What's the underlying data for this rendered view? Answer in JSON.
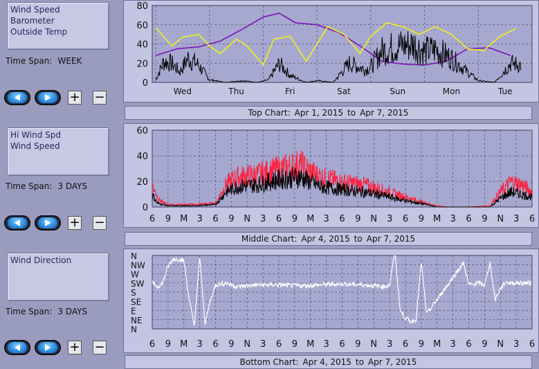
{
  "sections": [
    {
      "legend": [
        "Wind Speed",
        "Barometer",
        "Outside Temp"
      ],
      "time_span_label": "Time Span:",
      "time_span_value": "WEEK",
      "caption": {
        "name": "Top Chart:",
        "from": "Apr 1, 2015",
        "to_word": "to",
        "to": "Apr 7, 2015"
      }
    },
    {
      "legend": [
        "Hi Wind Spd",
        "Wind Speed"
      ],
      "time_span_label": "Time Span:",
      "time_span_value": "3 DAYS",
      "caption": {
        "name": "Middle Chart:",
        "from": "Apr 4, 2015",
        "to_word": "to",
        "to": "Apr 7, 2015"
      }
    },
    {
      "legend": [
        "Wind Direction"
      ],
      "time_span_label": "Time Span:",
      "time_span_value": "3 DAYS",
      "caption": {
        "name": "Bottom Chart:",
        "from": "Apr 4, 2015",
        "to_word": "to",
        "to": "Apr 7, 2015"
      }
    }
  ],
  "buttons": {
    "plus": "+",
    "minus": "−"
  },
  "icons": {
    "back": "back-arrow-icon",
    "forward": "forward-arrow-icon"
  },
  "colors": {
    "background": "#9a9cbf",
    "plot_area": "#a6a8cf",
    "wind_speed": "#000000",
    "barometer": "#7d12b8",
    "outside_temp": "#f2f21a",
    "hi_wind_spd": "#ff1e3c",
    "wind_direction": "#ffffff"
  },
  "chart_data": [
    {
      "type": "line",
      "ylim": [
        0,
        80
      ],
      "yticks": [
        0,
        20,
        40,
        60,
        80
      ],
      "x_labels": [
        "Wed",
        "Thu",
        "Fri",
        "Sat",
        "Sun",
        "Mon",
        "Tue"
      ],
      "x_range_days": [
        0,
        7
      ],
      "series": [
        {
          "name": "Wind Speed",
          "color": "#000000",
          "x": [
            0,
            0.15,
            0.3,
            0.45,
            0.6,
            0.8,
            1.0,
            1.3,
            1.6,
            1.9,
            2.1,
            2.3,
            2.5,
            2.8,
            3.0,
            3.3,
            3.6,
            3.9,
            4.0,
            4.2,
            4.5,
            4.8,
            5.0,
            5.2,
            5.5,
            5.8,
            6.0,
            6.3,
            6.6,
            6.8
          ],
          "y": [
            3,
            24,
            22,
            12,
            28,
            20,
            3,
            0,
            2,
            0,
            3,
            22,
            8,
            0,
            2,
            0,
            22,
            15,
            18,
            36,
            42,
            44,
            36,
            38,
            28,
            12,
            2,
            0,
            22,
            20
          ]
        },
        {
          "name": "Barometer",
          "color": "#7d12b8",
          "x": [
            0,
            0.4,
            0.8,
            1.2,
            1.6,
            2.0,
            2.3,
            2.6,
            3.0,
            3.4,
            3.8,
            4.2,
            4.6,
            5.0,
            5.4,
            5.8,
            6.2,
            6.6
          ],
          "y": [
            28,
            35,
            37,
            43,
            55,
            68,
            72,
            62,
            60,
            52,
            38,
            22,
            19,
            18,
            22,
            35,
            36,
            28
          ]
        },
        {
          "name": "Outside Temp",
          "color": "#f2f21a",
          "x": [
            0,
            0.3,
            0.5,
            0.8,
            1.0,
            1.2,
            1.5,
            1.7,
            2.0,
            2.2,
            2.5,
            2.8,
            3.0,
            3.2,
            3.5,
            3.8,
            4.0,
            4.3,
            4.6,
            4.9,
            5.2,
            5.5,
            5.8,
            6.1,
            6.4,
            6.7
          ],
          "y": [
            57,
            38,
            47,
            50,
            38,
            30,
            45,
            38,
            18,
            45,
            48,
            22,
            40,
            58,
            50,
            30,
            48,
            62,
            58,
            50,
            58,
            50,
            35,
            33,
            48,
            56
          ]
        }
      ]
    },
    {
      "type": "line",
      "ylim": [
        0,
        60
      ],
      "yticks": [
        0,
        20,
        40,
        60
      ],
      "x_labels": [
        "6",
        "9",
        "M",
        "3",
        "6",
        "9",
        "N",
        "3",
        "6",
        "9",
        "M",
        "3",
        "6",
        "9",
        "N",
        "3",
        "6",
        "9",
        "M",
        "3",
        "6",
        "9",
        "N",
        "3",
        "6"
      ],
      "x_range_hours": [
        0,
        72
      ],
      "series": [
        {
          "name": "Hi Wind Spd",
          "color": "#ff1e3c",
          "x": [
            0,
            1,
            3,
            5,
            8,
            12,
            14,
            16,
            20,
            24,
            28,
            30,
            32,
            36,
            40,
            44,
            48,
            52,
            54,
            56,
            60,
            64,
            66,
            68,
            70,
            72
          ],
          "y": [
            16,
            6,
            2,
            2,
            2,
            3,
            18,
            24,
            26,
            30,
            34,
            28,
            24,
            20,
            18,
            13,
            8,
            3,
            1,
            0,
            0,
            1,
            12,
            20,
            18,
            12
          ]
        },
        {
          "name": "Wind Speed",
          "color": "#000000",
          "x": [
            0,
            1,
            3,
            5,
            8,
            12,
            14,
            16,
            20,
            24,
            28,
            30,
            32,
            36,
            40,
            44,
            48,
            52,
            54,
            56,
            60,
            64,
            66,
            68,
            70,
            72
          ],
          "y": [
            10,
            3,
            1,
            1,
            1,
            2,
            12,
            16,
            18,
            22,
            24,
            20,
            16,
            14,
            12,
            9,
            5,
            2,
            0,
            0,
            0,
            0,
            7,
            12,
            10,
            8
          ]
        }
      ]
    },
    {
      "type": "scatter",
      "y_categories": [
        "N",
        "NE",
        "E",
        "SE",
        "S",
        "SW",
        "W",
        "NW",
        "N"
      ],
      "x_labels": [
        "6",
        "9",
        "M",
        "3",
        "6",
        "9",
        "N",
        "3",
        "6",
        "9",
        "M",
        "3",
        "6",
        "9",
        "N",
        "3",
        "6",
        "9",
        "M",
        "3",
        "6",
        "9",
        "N",
        "3",
        "6"
      ],
      "x_range_hours": [
        0,
        72
      ],
      "series": [
        {
          "name": "Wind Direction",
          "color": "#ffffff",
          "x": [
            0,
            1,
            2,
            3,
            4,
            5,
            6,
            7,
            8,
            9,
            10,
            11,
            12,
            14,
            16,
            20,
            24,
            28,
            32,
            36,
            40,
            44,
            45,
            46,
            47,
            48,
            49,
            50,
            51,
            52,
            58,
            59,
            60,
            62,
            63,
            64,
            65,
            66,
            67,
            68,
            70,
            72
          ],
          "y": [
            5,
            4.6,
            5,
            6.8,
            7.6,
            7.6,
            7.4,
            3.2,
            0.4,
            7.8,
            0.6,
            3,
            4.8,
            5,
            4.6,
            4.8,
            4.8,
            4.7,
            4.8,
            4.9,
            4.8,
            4.6,
            4.8,
            8.4,
            2,
            1.2,
            0.8,
            1,
            7.2,
            1.6,
            6.4,
            7.2,
            4.8,
            5,
            4.8,
            7.2,
            3.2,
            4.4,
            5.1,
            5,
            5,
            5
          ]
        }
      ]
    }
  ]
}
